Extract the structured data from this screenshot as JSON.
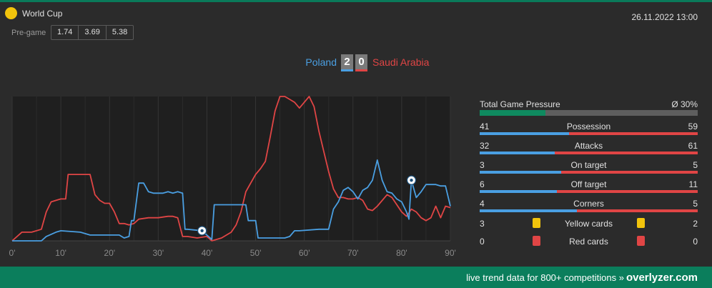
{
  "header": {
    "league": "World Cup",
    "datetime": "26.11.2022 13:00",
    "pregame_label": "Pre-game",
    "odds": [
      "1.74",
      "3.69",
      "5.38"
    ]
  },
  "match": {
    "home_team": "Poland",
    "away_team": "Saudi Arabia",
    "home_score": "2",
    "away_score": "0",
    "home_color": "#4a9fe2",
    "away_color": "#e04545"
  },
  "pressure": {
    "label": "Total Game Pressure",
    "value_text": "Ø 30%",
    "value": 30
  },
  "stats": [
    {
      "name": "Possession",
      "home": "41",
      "away": "59"
    },
    {
      "name": "Attacks",
      "home": "32",
      "away": "61"
    },
    {
      "name": "On target",
      "home": "3",
      "away": "5"
    },
    {
      "name": "Off target",
      "home": "6",
      "away": "11"
    },
    {
      "name": "Corners",
      "home": "4",
      "away": "5"
    }
  ],
  "cards": [
    {
      "name": "Yellow cards",
      "home": "3",
      "away": "2",
      "color": "#f2c40c"
    },
    {
      "name": "Red cards",
      "home": "0",
      "away": "0",
      "color": "#e04545"
    }
  ],
  "footer": {
    "text": "live trend data for 800+ competitions »",
    "brand": "overlyzer.com"
  },
  "chart_data": {
    "type": "line",
    "x_ticks": [
      "0'",
      "10'",
      "20'",
      "30'",
      "40'",
      "50'",
      "60'",
      "70'",
      "80'",
      "90'"
    ],
    "xlim": [
      0,
      90
    ],
    "ylim": [
      0,
      100
    ],
    "goals": [
      {
        "minute": 39,
        "team": "home"
      },
      {
        "minute": 82,
        "team": "home"
      }
    ],
    "series": [
      {
        "name": "Poland",
        "color": "#4a9fe2",
        "points": [
          [
            0,
            0
          ],
          [
            6,
            0
          ],
          [
            7,
            3
          ],
          [
            9,
            6
          ],
          [
            10,
            7
          ],
          [
            14,
            6
          ],
          [
            16,
            4
          ],
          [
            20,
            4
          ],
          [
            22,
            4
          ],
          [
            23,
            2
          ],
          [
            24,
            3
          ],
          [
            24.5,
            14
          ],
          [
            25,
            14
          ],
          [
            26,
            40
          ],
          [
            27,
            40
          ],
          [
            28,
            34
          ],
          [
            29,
            33
          ],
          [
            31,
            33
          ],
          [
            32,
            34
          ],
          [
            33,
            33
          ],
          [
            34,
            34
          ],
          [
            35,
            33
          ],
          [
            35.5,
            8
          ],
          [
            36,
            8
          ],
          [
            39,
            7
          ],
          [
            40,
            4
          ],
          [
            41,
            1
          ],
          [
            41.5,
            25
          ],
          [
            42,
            25
          ],
          [
            45,
            25
          ],
          [
            47,
            25
          ],
          [
            48,
            25
          ],
          [
            48.5,
            14
          ],
          [
            49,
            14
          ],
          [
            50,
            14
          ],
          [
            50.5,
            2
          ],
          [
            51,
            2
          ],
          [
            53,
            2
          ],
          [
            56,
            2
          ],
          [
            57,
            3
          ],
          [
            58,
            7
          ],
          [
            59,
            7
          ],
          [
            63,
            8
          ],
          [
            64,
            8
          ],
          [
            65,
            8
          ],
          [
            66,
            22
          ],
          [
            67,
            27
          ],
          [
            68,
            35
          ],
          [
            69,
            37
          ],
          [
            70,
            34
          ],
          [
            71,
            29
          ],
          [
            72,
            35
          ],
          [
            73,
            37
          ],
          [
            74,
            42
          ],
          [
            75,
            56
          ],
          [
            76,
            42
          ],
          [
            77,
            34
          ],
          [
            78,
            33
          ],
          [
            79,
            29
          ],
          [
            80,
            27
          ],
          [
            81,
            20
          ],
          [
            81.5,
            15
          ],
          [
            82,
            42
          ],
          [
            83,
            30
          ],
          [
            84,
            34
          ],
          [
            85,
            39
          ],
          [
            87,
            39
          ],
          [
            88,
            38
          ],
          [
            89,
            38
          ],
          [
            90,
            24
          ]
        ]
      },
      {
        "name": "Saudi Arabia",
        "color": "#e04545",
        "points": [
          [
            0,
            0
          ],
          [
            2,
            6
          ],
          [
            4,
            6
          ],
          [
            6,
            8
          ],
          [
            7,
            20
          ],
          [
            8,
            27
          ],
          [
            9,
            28
          ],
          [
            10,
            29
          ],
          [
            11,
            29
          ],
          [
            11.5,
            46
          ],
          [
            12,
            46
          ],
          [
            13,
            46
          ],
          [
            16,
            46
          ],
          [
            17,
            32
          ],
          [
            18,
            28
          ],
          [
            19,
            26
          ],
          [
            20,
            26
          ],
          [
            21,
            20
          ],
          [
            22,
            12
          ],
          [
            23,
            12
          ],
          [
            24,
            11
          ],
          [
            25,
            12
          ],
          [
            26,
            15
          ],
          [
            28,
            16
          ],
          [
            30,
            16
          ],
          [
            32,
            17
          ],
          [
            33,
            17
          ],
          [
            34,
            16
          ],
          [
            35,
            3
          ],
          [
            36,
            3
          ],
          [
            38,
            2
          ],
          [
            40,
            3
          ],
          [
            41,
            0
          ],
          [
            43,
            2
          ],
          [
            45,
            6
          ],
          [
            46,
            11
          ],
          [
            47,
            20
          ],
          [
            48,
            34
          ],
          [
            49,
            40
          ],
          [
            50,
            46
          ],
          [
            51,
            50
          ],
          [
            52,
            55
          ],
          [
            53,
            72
          ],
          [
            54,
            90
          ],
          [
            55,
            100
          ],
          [
            56,
            100
          ],
          [
            57,
            98
          ],
          [
            58,
            96
          ],
          [
            59,
            92
          ],
          [
            60,
            96
          ],
          [
            61,
            100
          ],
          [
            62,
            93
          ],
          [
            63,
            76
          ],
          [
            64,
            62
          ],
          [
            65,
            48
          ],
          [
            66,
            36
          ],
          [
            67,
            30
          ],
          [
            68,
            30
          ],
          [
            69,
            29
          ],
          [
            70,
            29
          ],
          [
            71,
            30
          ],
          [
            72,
            28
          ],
          [
            73,
            22
          ],
          [
            74,
            21
          ],
          [
            75,
            24
          ],
          [
            77,
            32
          ],
          [
            78,
            30
          ],
          [
            79,
            25
          ],
          [
            80,
            20
          ],
          [
            81,
            17
          ],
          [
            82,
            22
          ],
          [
            83,
            20
          ],
          [
            84,
            16
          ],
          [
            85,
            14
          ],
          [
            86,
            16
          ],
          [
            87,
            24
          ],
          [
            88,
            16
          ],
          [
            89,
            24
          ],
          [
            90,
            23
          ]
        ]
      }
    ]
  }
}
